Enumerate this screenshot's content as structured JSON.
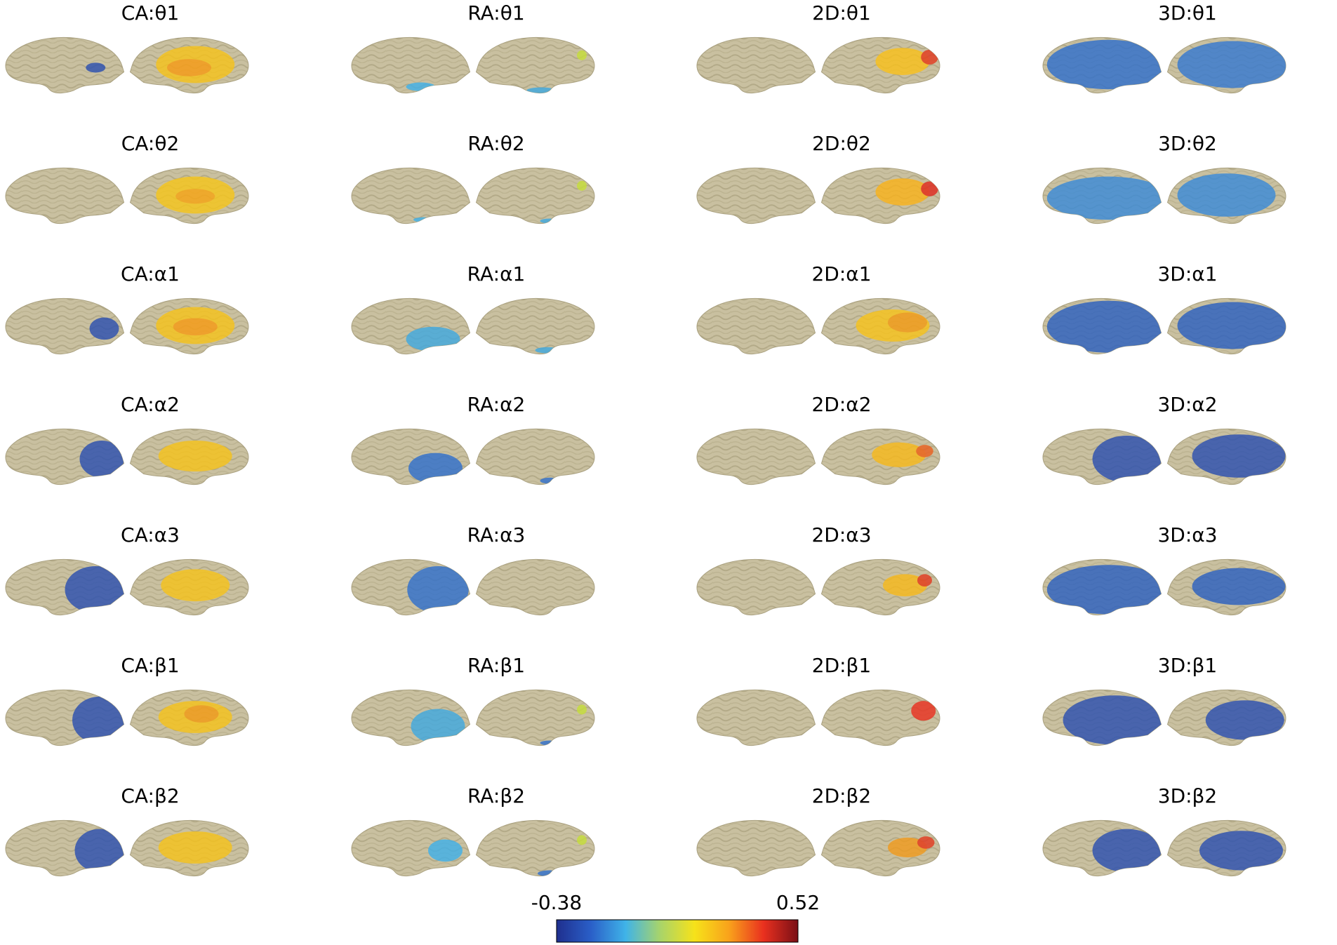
{
  "figure": {
    "methods": [
      "CA",
      "RA",
      "2D",
      "3D"
    ],
    "bands": [
      "θ1",
      "θ2",
      "α1",
      "α2",
      "α3",
      "β1",
      "β2"
    ],
    "separator": ":",
    "views": [
      "left hemisphere",
      "right hemisphere"
    ]
  },
  "colorbar": {
    "min_label": "-0.38",
    "max_label": "0.52",
    "min": -0.38,
    "max": 0.52,
    "colormap": "jet",
    "stops": [
      "#1f2f8e",
      "#2a5fc8",
      "#3fb3e8",
      "#a8d46a",
      "#f6e21a",
      "#f9a21b",
      "#e9301f",
      "#7a0f16"
    ]
  },
  "colors": {
    "cortex": "#c9c0a0",
    "sulcus": "#b0a884",
    "background": "#ffffff"
  },
  "panels": [
    {
      "title": "CA:θ1",
      "left": {
        "blobs": [
          [
            "#2a4fb0",
            0.25,
            0.55,
            0.08,
            0.08
          ]
        ]
      },
      "right": {
        "blobs": [
          [
            "#f5c21a",
            0.55,
            0.5,
            0.32,
            0.3
          ],
          [
            "#f39a1c",
            0.5,
            0.55,
            0.18,
            0.14
          ]
        ]
      }
    },
    {
      "title": "RA:θ1",
      "left": {
        "blobs": [
          [
            "#3fb0e8",
            0.42,
            0.86,
            0.12,
            0.07
          ]
        ]
      },
      "right": {
        "blobs": [
          [
            "#c6dd3a",
            0.88,
            0.35,
            0.04,
            0.08
          ],
          [
            "#3fa8e0",
            0.55,
            0.92,
            0.12,
            0.05
          ]
        ]
      }
    },
    {
      "title": "2D:θ1",
      "left": {
        "blobs": []
      },
      "right": {
        "blobs": [
          [
            "#f9c01a",
            0.68,
            0.45,
            0.22,
            0.22
          ],
          [
            "#e23a1f",
            0.9,
            0.38,
            0.07,
            0.12
          ]
        ]
      }
    },
    {
      "title": "3D:θ1",
      "left": {
        "blobs": [
          [
            "#2f6fcc",
            0.45,
            0.5,
            0.5,
            0.4
          ]
        ]
      },
      "right": {
        "blobs": [
          [
            "#3578d0",
            0.55,
            0.5,
            0.45,
            0.38
          ]
        ]
      }
    },
    {
      "title": "CA:θ2",
      "left": {
        "blobs": []
      },
      "right": {
        "blobs": [
          [
            "#f5c61a",
            0.55,
            0.5,
            0.32,
            0.3
          ],
          [
            "#f3a31c",
            0.55,
            0.52,
            0.16,
            0.12
          ]
        ]
      }
    },
    {
      "title": "RA:θ2",
      "left": {
        "blobs": [
          [
            "#3fb0e8",
            0.4,
            0.9,
            0.08,
            0.04
          ]
        ]
      },
      "right": {
        "blobs": [
          [
            "#c6dd3a",
            0.88,
            0.35,
            0.04,
            0.08
          ],
          [
            "#3fa8e0",
            0.62,
            0.92,
            0.08,
            0.04
          ]
        ]
      }
    },
    {
      "title": "2D:θ2",
      "left": {
        "blobs": []
      },
      "right": {
        "blobs": [
          [
            "#f9b21a",
            0.68,
            0.45,
            0.22,
            0.22
          ],
          [
            "#e0281e",
            0.9,
            0.4,
            0.07,
            0.12
          ]
        ]
      }
    },
    {
      "title": "3D:θ2",
      "left": {
        "blobs": [
          [
            "#3a8ad8",
            0.45,
            0.55,
            0.5,
            0.35
          ]
        ]
      },
      "right": {
        "blobs": [
          [
            "#3a8ad8",
            0.5,
            0.5,
            0.4,
            0.35
          ]
        ]
      }
    },
    {
      "title": "CA:α1",
      "left": {
        "blobs": [
          [
            "#2a4fb0",
            0.18,
            0.55,
            0.12,
            0.18
          ]
        ]
      },
      "right": {
        "blobs": [
          [
            "#f5c21a",
            0.55,
            0.5,
            0.32,
            0.3
          ],
          [
            "#f39a1c",
            0.55,
            0.52,
            0.18,
            0.14
          ]
        ]
      }
    },
    {
      "title": "RA:α1",
      "left": {
        "blobs": [
          [
            "#3fa8e0",
            0.32,
            0.72,
            0.22,
            0.2
          ]
        ]
      },
      "right": {
        "blobs": [
          [
            "#3fa8e0",
            0.6,
            0.9,
            0.1,
            0.05
          ]
        ]
      }
    },
    {
      "title": "2D:α1",
      "left": {
        "blobs": []
      },
      "right": {
        "blobs": [
          [
            "#f6c21a",
            0.6,
            0.5,
            0.3,
            0.26
          ],
          [
            "#f09a1c",
            0.72,
            0.45,
            0.16,
            0.16
          ]
        ]
      }
    },
    {
      "title": "3D:α1",
      "left": {
        "blobs": [
          [
            "#2a5fc0",
            0.45,
            0.52,
            0.5,
            0.42
          ]
        ]
      },
      "right": {
        "blobs": [
          [
            "#2a5fc0",
            0.55,
            0.5,
            0.45,
            0.38
          ]
        ]
      }
    },
    {
      "title": "CA:α2",
      "left": {
        "blobs": [
          [
            "#2a4fb0",
            0.2,
            0.55,
            0.18,
            0.3
          ]
        ]
      },
      "right": {
        "blobs": [
          [
            "#f5c21a",
            0.55,
            0.5,
            0.3,
            0.25
          ]
        ]
      }
    },
    {
      "title": "RA:α2",
      "left": {
        "blobs": [
          [
            "#2f6fcc",
            0.3,
            0.7,
            0.22,
            0.25
          ]
        ]
      },
      "right": {
        "blobs": [
          [
            "#2f6fcc",
            0.62,
            0.9,
            0.08,
            0.05
          ]
        ]
      }
    },
    {
      "title": "2D:α2",
      "left": {
        "blobs": []
      },
      "right": {
        "blobs": [
          [
            "#f6b81a",
            0.65,
            0.48,
            0.22,
            0.2
          ],
          [
            "#e9601e",
            0.86,
            0.42,
            0.07,
            0.1
          ]
        ]
      }
    },
    {
      "title": "3D:α2",
      "left": {
        "blobs": [
          [
            "#2a4fb0",
            0.3,
            0.55,
            0.28,
            0.38
          ]
        ]
      },
      "right": {
        "blobs": [
          [
            "#2a4fb0",
            0.6,
            0.5,
            0.38,
            0.35
          ]
        ]
      }
    },
    {
      "title": "CA:α3",
      "left": {
        "blobs": [
          [
            "#2a4fb0",
            0.25,
            0.55,
            0.25,
            0.38
          ]
        ]
      },
      "right": {
        "blobs": [
          [
            "#f5c21a",
            0.55,
            0.48,
            0.28,
            0.26
          ]
        ]
      }
    },
    {
      "title": "RA:α3",
      "left": {
        "blobs": [
          [
            "#2f6fcc",
            0.28,
            0.55,
            0.25,
            0.38
          ]
        ]
      },
      "right": {
        "blobs": []
      }
    },
    {
      "title": "2D:α3",
      "left": {
        "blobs": []
      },
      "right": {
        "blobs": [
          [
            "#f6b81a",
            0.7,
            0.48,
            0.18,
            0.18
          ],
          [
            "#e23a1f",
            0.86,
            0.4,
            0.06,
            0.1
          ]
        ]
      }
    },
    {
      "title": "3D:α3",
      "left": {
        "blobs": [
          [
            "#2a5fc0",
            0.45,
            0.55,
            0.5,
            0.4
          ]
        ]
      },
      "right": {
        "blobs": [
          [
            "#2a5fc0",
            0.6,
            0.5,
            0.38,
            0.3
          ]
        ]
      }
    },
    {
      "title": "CA:β1",
      "left": {
        "blobs": [
          [
            "#2a4fb0",
            0.22,
            0.55,
            0.22,
            0.38
          ]
        ]
      },
      "right": {
        "blobs": [
          [
            "#f5c21a",
            0.55,
            0.5,
            0.3,
            0.26
          ],
          [
            "#f09a1c",
            0.6,
            0.45,
            0.14,
            0.14
          ]
        ]
      }
    },
    {
      "title": "RA:β1",
      "left": {
        "blobs": [
          [
            "#3fa8e0",
            0.28,
            0.65,
            0.22,
            0.28
          ]
        ]
      },
      "right": {
        "blobs": [
          [
            "#c6dd3a",
            0.88,
            0.38,
            0.04,
            0.08
          ],
          [
            "#2f6fcc",
            0.62,
            0.92,
            0.08,
            0.04
          ]
        ]
      }
    },
    {
      "title": "2D:β1",
      "left": {
        "blobs": []
      },
      "right": {
        "blobs": [
          [
            "#e9301f",
            0.85,
            0.4,
            0.1,
            0.16
          ]
        ]
      }
    },
    {
      "title": "3D:β1",
      "left": {
        "blobs": [
          [
            "#2a4fb0",
            0.4,
            0.55,
            0.42,
            0.4
          ]
        ]
      },
      "right": {
        "blobs": [
          [
            "#2a4fb0",
            0.65,
            0.55,
            0.32,
            0.32
          ]
        ]
      }
    },
    {
      "title": "CA:β2",
      "left": {
        "blobs": [
          [
            "#2a4fb0",
            0.22,
            0.55,
            0.2,
            0.35
          ]
        ]
      },
      "right": {
        "blobs": [
          [
            "#f5c21a",
            0.55,
            0.5,
            0.3,
            0.26
          ]
        ]
      }
    },
    {
      "title": "RA:β2",
      "left": {
        "blobs": [
          [
            "#3fb0e8",
            0.22,
            0.55,
            0.14,
            0.18
          ]
        ]
      },
      "right": {
        "blobs": [
          [
            "#c6dd3a",
            0.88,
            0.38,
            0.04,
            0.08
          ],
          [
            "#2f6fcc",
            0.62,
            0.92,
            0.1,
            0.05
          ]
        ]
      }
    },
    {
      "title": "2D:β2",
      "left": {
        "blobs": []
      },
      "right": {
        "blobs": [
          [
            "#f09a1c",
            0.72,
            0.5,
            0.16,
            0.16
          ],
          [
            "#e23a1f",
            0.87,
            0.42,
            0.07,
            0.1
          ]
        ]
      }
    },
    {
      "title": "3D:β2",
      "left": {
        "blobs": [
          [
            "#2a4fb0",
            0.3,
            0.55,
            0.28,
            0.35
          ]
        ]
      },
      "right": {
        "blobs": [
          [
            "#2a4fb0",
            0.62,
            0.55,
            0.34,
            0.32
          ]
        ]
      }
    }
  ]
}
